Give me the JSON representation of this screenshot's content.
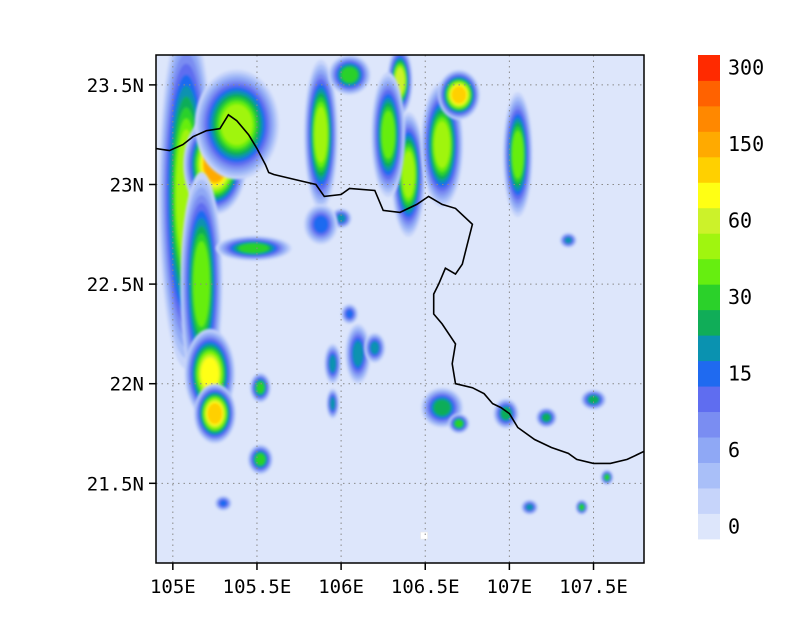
{
  "chart_data": {
    "type": "heatmap",
    "title": "",
    "xlabel": "",
    "ylabel": "",
    "xlim": [
      104.9,
      107.8
    ],
    "ylim": [
      21.1,
      23.65
    ],
    "grid": true,
    "x_ticks": [
      {
        "value": 105.0,
        "label": "105E"
      },
      {
        "value": 105.5,
        "label": "105.5E"
      },
      {
        "value": 106.0,
        "label": "106E"
      },
      {
        "value": 106.5,
        "label": "106.5E"
      },
      {
        "value": 107.0,
        "label": "107E"
      },
      {
        "value": 107.5,
        "label": "107.5E"
      }
    ],
    "y_ticks": [
      {
        "value": 21.5,
        "label": "21.5N"
      },
      {
        "value": 22.0,
        "label": "22N"
      },
      {
        "value": 22.5,
        "label": "22.5N"
      },
      {
        "value": 23.0,
        "label": "23N"
      },
      {
        "value": 23.5,
        "label": "23.5N"
      }
    ],
    "colorbar": {
      "placement": "right",
      "colors": [
        "#dde6fb",
        "#c6d4fa",
        "#a9bff8",
        "#8fa8f5",
        "#7a8df2",
        "#5f6df0",
        "#1f6af0",
        "#0a92b0",
        "#10ad58",
        "#2bd12a",
        "#66ee10",
        "#a0f50f",
        "#ccf22a",
        "#ffff14",
        "#ffd000",
        "#ffaa00",
        "#ff8800",
        "#ff6200",
        "#ff2a00"
      ],
      "labels": [
        {
          "index": 0,
          "text": "0"
        },
        {
          "index": 3,
          "text": "6"
        },
        {
          "index": 6,
          "text": "15"
        },
        {
          "index": 9,
          "text": "30"
        },
        {
          "index": 12,
          "text": "60"
        },
        {
          "index": 15,
          "text": "150"
        },
        {
          "index": 18,
          "text": "300"
        }
      ]
    },
    "hotspots": [
      {
        "lon": 105.08,
        "lat": 22.95,
        "dlon": 0.13,
        "dlat": 0.7,
        "level": 11
      },
      {
        "lon": 105.25,
        "lat": 23.1,
        "dlon": 0.15,
        "dlat": 0.2,
        "level": 15
      },
      {
        "lon": 105.38,
        "lat": 23.3,
        "dlon": 0.2,
        "dlat": 0.22,
        "level": 11
      },
      {
        "lon": 105.17,
        "lat": 22.5,
        "dlon": 0.1,
        "dlat": 0.45,
        "level": 10
      },
      {
        "lon": 105.22,
        "lat": 22.05,
        "dlon": 0.12,
        "dlat": 0.18,
        "level": 13
      },
      {
        "lon": 105.25,
        "lat": 21.85,
        "dlon": 0.1,
        "dlat": 0.12,
        "level": 14
      },
      {
        "lon": 105.48,
        "lat": 22.68,
        "dlon": 0.18,
        "dlat": 0.05,
        "level": 9
      },
      {
        "lon": 105.52,
        "lat": 21.98,
        "dlon": 0.05,
        "dlat": 0.06,
        "level": 9
      },
      {
        "lon": 105.52,
        "lat": 21.62,
        "dlon": 0.06,
        "dlat": 0.06,
        "level": 9
      },
      {
        "lon": 105.88,
        "lat": 23.25,
        "dlon": 0.08,
        "dlat": 0.3,
        "level": 11
      },
      {
        "lon": 106.05,
        "lat": 23.55,
        "dlon": 0.1,
        "dlat": 0.08,
        "level": 9
      },
      {
        "lon": 106.35,
        "lat": 23.52,
        "dlon": 0.06,
        "dlat": 0.14,
        "level": 12
      },
      {
        "lon": 106.4,
        "lat": 23.05,
        "dlon": 0.08,
        "dlat": 0.25,
        "level": 11
      },
      {
        "lon": 106.6,
        "lat": 23.2,
        "dlon": 0.1,
        "dlat": 0.25,
        "level": 11
      },
      {
        "lon": 106.7,
        "lat": 23.45,
        "dlon": 0.1,
        "dlat": 0.1,
        "level": 14
      },
      {
        "lon": 107.05,
        "lat": 23.15,
        "dlon": 0.07,
        "dlat": 0.25,
        "level": 10
      },
      {
        "lon": 106.1,
        "lat": 22.15,
        "dlon": 0.06,
        "dlat": 0.12,
        "level": 7
      },
      {
        "lon": 106.2,
        "lat": 22.18,
        "dlon": 0.05,
        "dlat": 0.06,
        "level": 7
      },
      {
        "lon": 105.95,
        "lat": 22.1,
        "dlon": 0.04,
        "dlat": 0.08,
        "level": 7
      },
      {
        "lon": 105.95,
        "lat": 21.9,
        "dlon": 0.03,
        "dlat": 0.06,
        "level": 7
      },
      {
        "lon": 106.0,
        "lat": 22.83,
        "dlon": 0.05,
        "dlat": 0.04,
        "level": 7
      },
      {
        "lon": 106.05,
        "lat": 22.35,
        "dlon": 0.04,
        "dlat": 0.04,
        "level": 6
      },
      {
        "lon": 106.6,
        "lat": 21.88,
        "dlon": 0.1,
        "dlat": 0.08,
        "level": 8
      },
      {
        "lon": 106.7,
        "lat": 21.8,
        "dlon": 0.05,
        "dlat": 0.04,
        "level": 9
      },
      {
        "lon": 106.98,
        "lat": 21.85,
        "dlon": 0.06,
        "dlat": 0.06,
        "level": 8
      },
      {
        "lon": 107.22,
        "lat": 21.83,
        "dlon": 0.05,
        "dlat": 0.04,
        "level": 8
      },
      {
        "lon": 107.5,
        "lat": 21.92,
        "dlon": 0.06,
        "dlat": 0.04,
        "level": 8
      },
      {
        "lon": 107.58,
        "lat": 21.53,
        "dlon": 0.03,
        "dlat": 0.03,
        "level": 9
      },
      {
        "lon": 107.43,
        "lat": 21.38,
        "dlon": 0.03,
        "dlat": 0.03,
        "level": 9
      },
      {
        "lon": 107.12,
        "lat": 21.38,
        "dlon": 0.04,
        "dlat": 0.03,
        "level": 7
      },
      {
        "lon": 107.35,
        "lat": 22.72,
        "dlon": 0.04,
        "dlat": 0.03,
        "level": 7
      },
      {
        "lon": 105.88,
        "lat": 22.8,
        "dlon": 0.08,
        "dlat": 0.08,
        "level": 6
      },
      {
        "lon": 105.3,
        "lat": 21.4,
        "dlon": 0.04,
        "dlat": 0.03,
        "level": 6
      },
      {
        "lon": 106.28,
        "lat": 23.25,
        "dlon": 0.08,
        "dlat": 0.25,
        "level": 10
      }
    ],
    "boundary": [
      [
        104.9,
        23.18
      ],
      [
        104.98,
        23.17
      ],
      [
        105.06,
        23.2
      ],
      [
        105.12,
        23.24
      ],
      [
        105.2,
        23.27
      ],
      [
        105.28,
        23.28
      ],
      [
        105.33,
        23.35
      ],
      [
        105.38,
        23.32
      ],
      [
        105.45,
        23.25
      ],
      [
        105.5,
        23.18
      ],
      [
        105.55,
        23.1
      ],
      [
        105.57,
        23.06
      ],
      [
        105.6,
        23.05
      ],
      [
        105.75,
        23.02
      ],
      [
        105.85,
        23.0
      ],
      [
        105.9,
        22.94
      ],
      [
        106.0,
        22.95
      ],
      [
        106.05,
        22.98
      ],
      [
        106.2,
        22.97
      ],
      [
        106.25,
        22.87
      ],
      [
        106.35,
        22.86
      ],
      [
        106.45,
        22.9
      ],
      [
        106.52,
        22.94
      ],
      [
        106.6,
        22.9
      ],
      [
        106.68,
        22.88
      ],
      [
        106.78,
        22.8
      ],
      [
        106.75,
        22.7
      ],
      [
        106.72,
        22.6
      ],
      [
        106.68,
        22.55
      ],
      [
        106.62,
        22.58
      ],
      [
        106.58,
        22.5
      ],
      [
        106.55,
        22.45
      ],
      [
        106.55,
        22.35
      ],
      [
        106.6,
        22.3
      ],
      [
        106.68,
        22.2
      ],
      [
        106.66,
        22.1
      ],
      [
        106.68,
        22.0
      ],
      [
        106.78,
        21.98
      ],
      [
        106.85,
        21.95
      ],
      [
        106.9,
        21.9
      ],
      [
        106.95,
        21.88
      ],
      [
        107.0,
        21.85
      ],
      [
        107.05,
        21.78
      ],
      [
        107.15,
        21.72
      ],
      [
        107.25,
        21.68
      ],
      [
        107.35,
        21.65
      ],
      [
        107.4,
        21.62
      ],
      [
        107.5,
        21.6
      ],
      [
        107.6,
        21.6
      ],
      [
        107.7,
        21.62
      ],
      [
        107.8,
        21.66
      ]
    ],
    "white_cells": [
      {
        "lon": 106.49,
        "lat": 21.24
      }
    ]
  }
}
